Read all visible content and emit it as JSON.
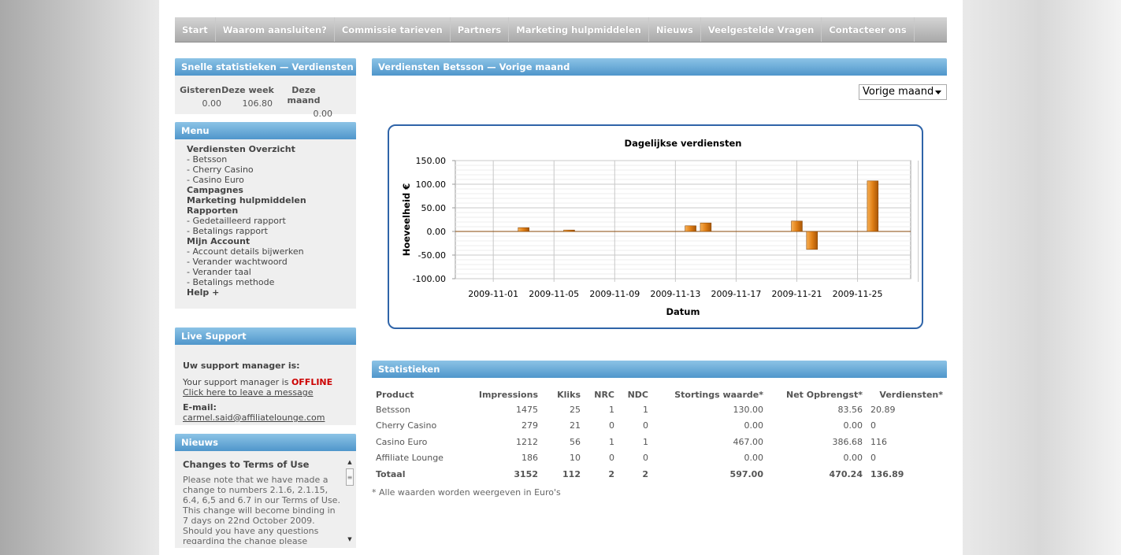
{
  "nav": [
    "Start",
    "Waarom aansluiten?",
    "Commissie tarieven",
    "Partners",
    "Marketing hulpmiddelen",
    "Nieuws",
    "Veelgestelde Vragen",
    "Contacteer ons"
  ],
  "quick": {
    "title": "Snelle statistieken — Verdiensten",
    "headers": [
      "Gisteren",
      "Deze week",
      "Deze maand"
    ],
    "values": [
      "0.00",
      "106.80",
      "0.00"
    ]
  },
  "menu": {
    "title": "Menu",
    "items": [
      {
        "label": "Verdiensten Overzicht",
        "type": "hd"
      },
      {
        "label": "- Betsson",
        "type": "sub"
      },
      {
        "label": "- Cherry Casino",
        "type": "sub"
      },
      {
        "label": "- Casino Euro",
        "type": "sub"
      },
      {
        "label": "Campagnes",
        "type": "hd"
      },
      {
        "label": "Marketing hulpmiddelen",
        "type": "hd"
      },
      {
        "label": "Rapporten",
        "type": "hd"
      },
      {
        "label": "- Gedetailleerd rapport",
        "type": "sub"
      },
      {
        "label": "- Betalings rapport",
        "type": "sub"
      },
      {
        "label": "Mijn Account",
        "type": "hd"
      },
      {
        "label": "- Account details bijwerken",
        "type": "sub"
      },
      {
        "label": "- Verander wachtwoord",
        "type": "sub"
      },
      {
        "label": "- Verander taal",
        "type": "sub"
      },
      {
        "label": "- Betalings methode",
        "type": "sub"
      },
      {
        "label": "Help +",
        "type": "hd"
      }
    ]
  },
  "live": {
    "title": "Live Support",
    "heading": "Uw support manager is:",
    "status_prefix": "Your support manager is ",
    "status": "OFFLINE",
    "leave_message": "Click here to leave a message",
    "email_label": "E-mail:",
    "email": "carmel.said@affiliatelounge.com"
  },
  "news": {
    "title": "Nieuws",
    "item_title": "Changes to Terms of Use",
    "item_text": "Please note that we have made a change to numbers 2.1.6, 2.1.15, 6.4, 6,5 and 6.7 in our Terms of Use. This change will become binding in 7 days on 22nd October 2009. Should you have any questions regarding the change please contact your Affiliate Manager or"
  },
  "main": {
    "earnings_title": "Verdiensten Betsson — Vorige maand",
    "period_selected": "Vorige maand",
    "stats_title": "Statistieken",
    "note": "* Alle waarden worden weergeven in Euro's"
  },
  "chart_data": {
    "type": "bar",
    "title": "Dagelijkse verdiensten",
    "xlabel": "Datum",
    "ylabel": "Hoeveelheid €",
    "ylim": [
      -100,
      150
    ],
    "yticks": [
      "150.00",
      "100.00",
      "50.00",
      "0.00",
      "-50.00",
      "-100.00"
    ],
    "xticks": [
      "2009-11-01",
      "2009-11-05",
      "2009-11-09",
      "2009-11-13",
      "2009-11-17",
      "2009-11-21",
      "2009-11-25"
    ],
    "x_start": "2009-11-01",
    "days": 30,
    "values": [
      0,
      0,
      0,
      0,
      8,
      0,
      0,
      3,
      0,
      0,
      0,
      0,
      0,
      0,
      0,
      12,
      18,
      0,
      0,
      0,
      0,
      0,
      22,
      -38,
      0,
      0,
      0,
      107,
      0,
      0
    ],
    "grid": true,
    "legend": "none",
    "bar_color": "#e07f16"
  },
  "stats": {
    "headers": [
      "Product",
      "Impressions",
      "Kliks",
      "NRC",
      "NDC",
      "Stortings waarde*",
      "Net Opbrengst*",
      "Verdiensten*"
    ],
    "rows": [
      [
        "Betsson",
        "1475",
        "25",
        "1",
        "1",
        "130.00",
        "83.56",
        "20.89"
      ],
      [
        "Cherry Casino",
        "279",
        "21",
        "0",
        "0",
        "0.00",
        "0.00",
        "0"
      ],
      [
        "Casino Euro",
        "1212",
        "56",
        "1",
        "1",
        "467.00",
        "386.68",
        "116"
      ],
      [
        "Affiliate Lounge",
        "186",
        "10",
        "0",
        "0",
        "0.00",
        "0.00",
        "0"
      ]
    ],
    "total": [
      "Totaal",
      "3152",
      "112",
      "2",
      "2",
      "597.00",
      "470.24",
      "136.89"
    ]
  }
}
